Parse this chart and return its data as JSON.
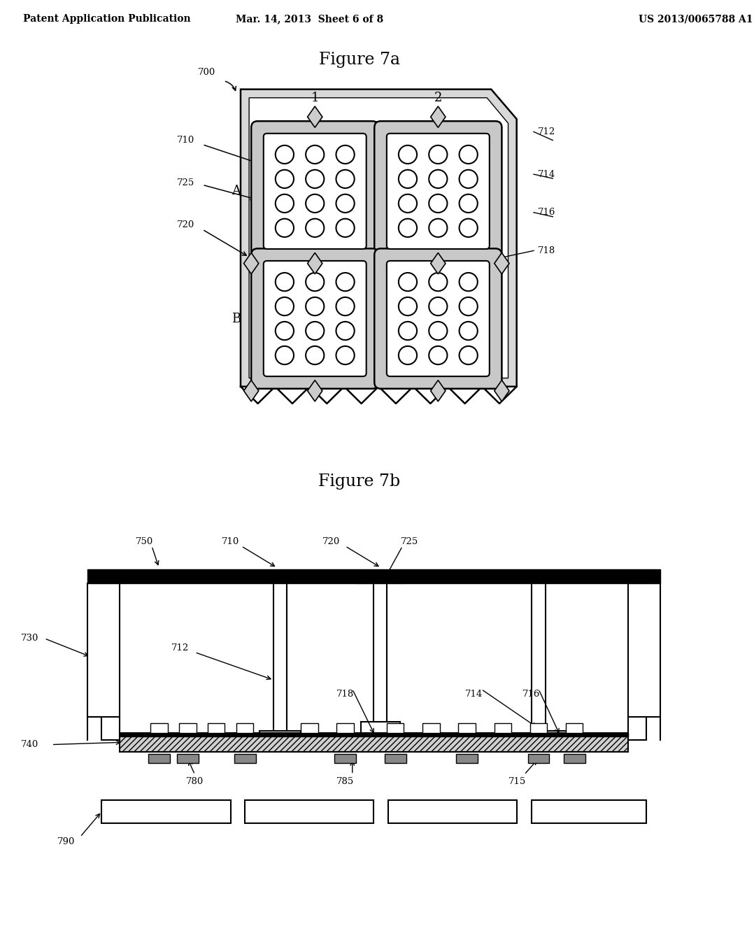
{
  "background_color": "#ffffff",
  "header_left": "Patent Application Publication",
  "header_center": "Mar. 14, 2013  Sheet 6 of 8",
  "header_right": "US 2013/0065788 A1",
  "fig7a_title": "Figure 7a",
  "fig7b_title": "Figure 7b",
  "lc": "#000000",
  "gray_light": "#e0e0e0",
  "gray_mid": "#b0b0b0",
  "gray_dark": "#606060"
}
